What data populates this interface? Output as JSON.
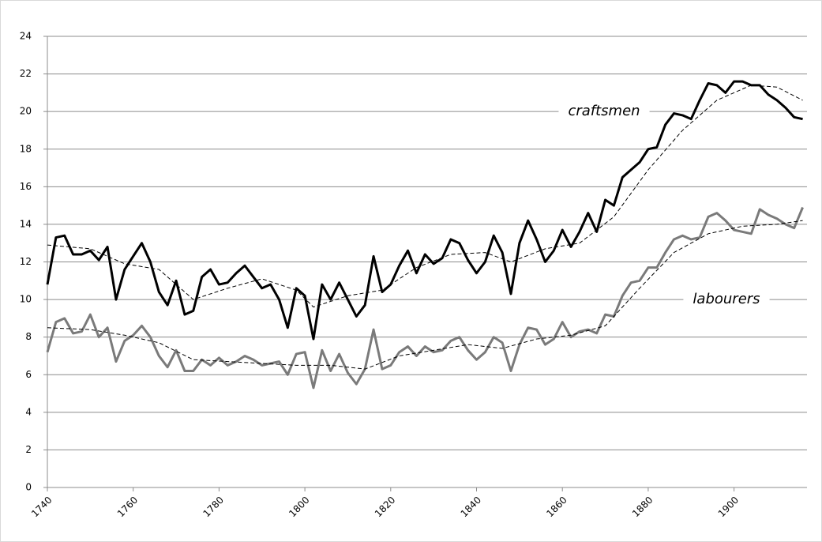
{
  "chart_data": {
    "type": "line",
    "xlim": [
      1740,
      1917
    ],
    "xticks": [
      1740,
      1760,
      1780,
      1800,
      1820,
      1840,
      1860,
      1880,
      1900
    ],
    "ylim": [
      0,
      24
    ],
    "yticks": [
      0,
      2,
      4,
      6,
      8,
      10,
      12,
      14,
      16,
      18,
      20,
      22,
      24
    ],
    "grid": true,
    "series": [
      {
        "name": "craftsmen",
        "color": "#000000",
        "style": "solid",
        "x": [
          1740,
          1742,
          1744,
          1746,
          1748,
          1750,
          1752,
          1754,
          1756,
          1758,
          1760,
          1762,
          1764,
          1766,
          1768,
          1770,
          1772,
          1774,
          1776,
          1778,
          1780,
          1782,
          1784,
          1786,
          1788,
          1790,
          1792,
          1794,
          1796,
          1798,
          1800,
          1802,
          1804,
          1806,
          1808,
          1810,
          1812,
          1814,
          1816,
          1818,
          1820,
          1822,
          1824,
          1826,
          1828,
          1830,
          1832,
          1834,
          1836,
          1838,
          1840,
          1842,
          1844,
          1846,
          1848,
          1850,
          1852,
          1854,
          1856,
          1858,
          1860,
          1862,
          1864,
          1866,
          1868,
          1870,
          1872,
          1874,
          1876,
          1878,
          1880,
          1882,
          1884,
          1886,
          1888,
          1890,
          1892,
          1894,
          1896,
          1898,
          1900,
          1902,
          1904,
          1906,
          1908,
          1910,
          1912,
          1914,
          1916
        ],
        "values": [
          10.8,
          13.3,
          13.4,
          12.4,
          12.4,
          12.6,
          12.1,
          12.8,
          10.0,
          11.6,
          12.3,
          13.0,
          12.0,
          10.4,
          9.7,
          11.0,
          9.2,
          9.4,
          11.2,
          11.6,
          10.8,
          10.9,
          11.4,
          11.8,
          11.2,
          10.6,
          10.8,
          10.0,
          8.5,
          10.6,
          10.2,
          7.9,
          10.8,
          10.0,
          10.9,
          10.0,
          9.1,
          9.7,
          12.3,
          10.4,
          10.8,
          11.8,
          12.6,
          11.4,
          12.4,
          11.9,
          12.2,
          13.2,
          13.0,
          12.1,
          11.4,
          12.0,
          13.4,
          12.5,
          10.3,
          13.0,
          14.2,
          13.2,
          12.0,
          12.6,
          13.7,
          12.8,
          13.6,
          14.6,
          13.6,
          15.3,
          15.0,
          16.5,
          16.9,
          17.3,
          18.0,
          18.1,
          19.3,
          19.9,
          19.8,
          19.6,
          20.6,
          21.5,
          21.4,
          21.0,
          21.6,
          21.6,
          21.4,
          21.4,
          20.9,
          20.6,
          20.2,
          19.7,
          19.6
        ]
      },
      {
        "name": "labourers",
        "color": "#7a7a7a",
        "style": "solid",
        "x": [
          1740,
          1742,
          1744,
          1746,
          1748,
          1750,
          1752,
          1754,
          1756,
          1758,
          1760,
          1762,
          1764,
          1766,
          1768,
          1770,
          1772,
          1774,
          1776,
          1778,
          1780,
          1782,
          1784,
          1786,
          1788,
          1790,
          1792,
          1794,
          1796,
          1798,
          1800,
          1802,
          1804,
          1806,
          1808,
          1810,
          1812,
          1814,
          1816,
          1818,
          1820,
          1822,
          1824,
          1826,
          1828,
          1830,
          1832,
          1834,
          1836,
          1838,
          1840,
          1842,
          1844,
          1846,
          1848,
          1850,
          1852,
          1854,
          1856,
          1858,
          1860,
          1862,
          1864,
          1866,
          1868,
          1870,
          1872,
          1874,
          1876,
          1878,
          1880,
          1882,
          1884,
          1886,
          1888,
          1890,
          1892,
          1894,
          1896,
          1898,
          1900,
          1902,
          1904,
          1906,
          1908,
          1910,
          1912,
          1914,
          1916
        ],
        "values": [
          7.2,
          8.8,
          9.0,
          8.2,
          8.3,
          9.2,
          8.0,
          8.5,
          6.7,
          7.8,
          8.1,
          8.6,
          8.0,
          7.0,
          6.4,
          7.3,
          6.2,
          6.2,
          6.8,
          6.5,
          6.9,
          6.5,
          6.7,
          7.0,
          6.8,
          6.5,
          6.6,
          6.7,
          6.0,
          7.1,
          7.2,
          5.3,
          7.3,
          6.2,
          7.1,
          6.1,
          5.5,
          6.3,
          8.4,
          6.3,
          6.5,
          7.2,
          7.5,
          7.0,
          7.5,
          7.2,
          7.3,
          7.8,
          8.0,
          7.3,
          6.8,
          7.2,
          8.0,
          7.7,
          6.2,
          7.6,
          8.5,
          8.4,
          7.6,
          7.9,
          8.8,
          8.0,
          8.3,
          8.4,
          8.2,
          9.2,
          9.1,
          10.2,
          10.9,
          11.0,
          11.7,
          11.7,
          12.5,
          13.2,
          13.4,
          13.2,
          13.3,
          14.4,
          14.6,
          14.2,
          13.7,
          13.6,
          13.5,
          14.8,
          14.5,
          14.3,
          14.0,
          13.8,
          14.9
        ]
      },
      {
        "color": "#000000",
        "style": "dashed",
        "x": [
          1740,
          1750,
          1758,
          1766,
          1774,
          1782,
          1790,
          1798,
          1802,
          1810,
          1818,
          1826,
          1834,
          1842,
          1848,
          1856,
          1864,
          1872,
          1880,
          1888,
          1896,
          1904,
          1910,
          1916
        ],
        "values": [
          12.9,
          12.7,
          11.9,
          11.6,
          10.0,
          10.6,
          11.1,
          10.5,
          9.6,
          10.2,
          10.5,
          11.7,
          12.4,
          12.5,
          12.0,
          12.7,
          13.0,
          14.4,
          16.9,
          19.0,
          20.6,
          21.4,
          21.3,
          20.6
        ]
      },
      {
        "color": "#000000",
        "style": "dashed",
        "x": [
          1740,
          1750,
          1758,
          1766,
          1774,
          1782,
          1790,
          1798,
          1806,
          1814,
          1822,
          1830,
          1838,
          1846,
          1854,
          1862,
          1870,
          1878,
          1886,
          1894,
          1902,
          1910,
          1916
        ],
        "values": [
          8.5,
          8.4,
          8.1,
          7.7,
          6.8,
          6.7,
          6.6,
          6.5,
          6.5,
          6.3,
          7.0,
          7.3,
          7.6,
          7.4,
          7.9,
          8.1,
          8.6,
          10.6,
          12.5,
          13.5,
          13.9,
          14.0,
          14.2
        ]
      }
    ]
  }
}
